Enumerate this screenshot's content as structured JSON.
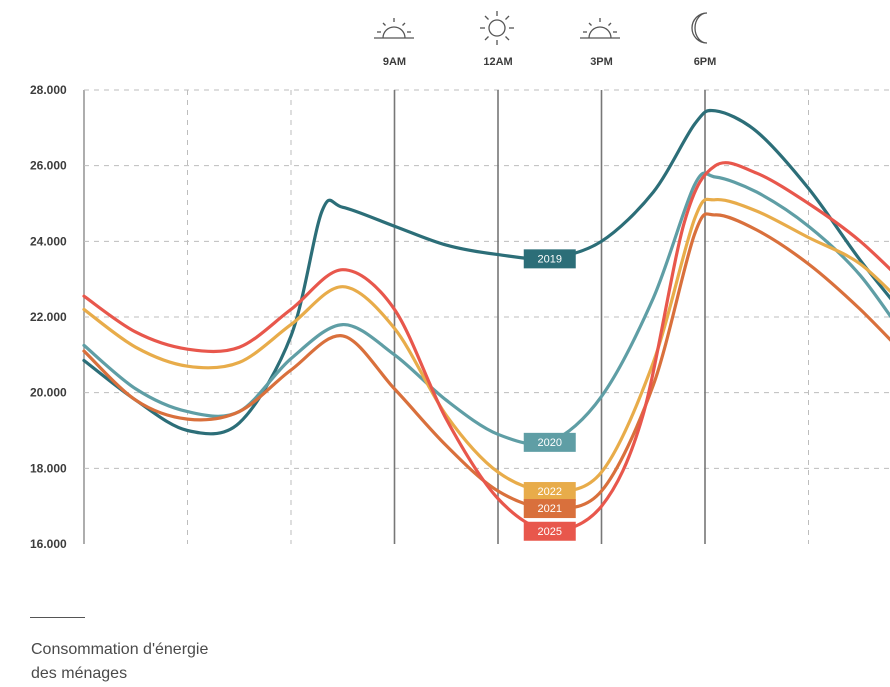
{
  "chart_data": {
    "type": "line",
    "y_ticks": [
      "28.000",
      "26.000",
      "24.000",
      "22.000",
      "20.000",
      "18.000",
      "16.000"
    ],
    "ylim": [
      16000,
      28000
    ],
    "xlim": [
      0,
      8
    ],
    "time_markers": [
      {
        "label": "9AM",
        "x": 3,
        "icon": "sunrise-icon"
      },
      {
        "label": "12AM",
        "x": 4,
        "icon": "sun-icon"
      },
      {
        "label": "3PM",
        "x": 5,
        "icon": "sunset-icon"
      },
      {
        "label": "6PM",
        "x": 6,
        "icon": "moon-icon"
      }
    ],
    "grid": true,
    "series": [
      {
        "name": "2019",
        "color": "#2c6e78",
        "label_x": 4.5,
        "x": [
          0,
          0.5,
          1,
          1.5,
          2,
          2.3,
          2.5,
          3,
          3.5,
          4,
          4.5,
          5,
          5.5,
          5.9,
          6.1,
          6.5,
          7,
          7.5,
          8
        ],
        "y": [
          20850,
          19800,
          19000,
          19200,
          21500,
          24800,
          24900,
          24400,
          23900,
          23650,
          23550,
          24000,
          25300,
          27100,
          27450,
          26900,
          25400,
          23500,
          21800
        ]
      },
      {
        "name": "2020",
        "color": "#5f9ea5",
        "label_x": 4.5,
        "x": [
          0,
          0.5,
          1,
          1.5,
          2,
          2.5,
          3,
          3.5,
          4,
          4.5,
          5,
          5.5,
          5.9,
          6.1,
          6.5,
          7,
          7.5,
          8
        ],
        "y": [
          21250,
          20100,
          19500,
          19500,
          20900,
          21800,
          21000,
          19800,
          18900,
          18700,
          19900,
          22500,
          25500,
          25700,
          25300,
          24400,
          23100,
          21200
        ]
      },
      {
        "name": "2022",
        "color": "#e8ac4a",
        "label_x": 4.5,
        "x": [
          0,
          0.5,
          1,
          1.5,
          2,
          2.5,
          3,
          3.5,
          4,
          4.5,
          5,
          5.5,
          5.9,
          6.1,
          6.5,
          7,
          7.5,
          8
        ],
        "y": [
          22200,
          21200,
          20700,
          20800,
          21800,
          22800,
          21700,
          19400,
          17900,
          17400,
          17900,
          20800,
          24600,
          25100,
          24800,
          24100,
          23400,
          22100
        ]
      },
      {
        "name": "2021",
        "color": "#d9703c",
        "label_x": 4.5,
        "x": [
          0,
          0.5,
          1,
          1.5,
          2,
          2.5,
          3,
          3.5,
          4,
          4.5,
          5,
          5.5,
          5.9,
          6.1,
          6.5,
          7,
          7.5,
          8
        ],
        "y": [
          21100,
          19800,
          19300,
          19500,
          20600,
          21500,
          20100,
          18600,
          17400,
          16950,
          17400,
          20200,
          24200,
          24700,
          24300,
          23400,
          22200,
          20800
        ]
      },
      {
        "name": "2025",
        "color": "#e8574c",
        "label_x": 4.5,
        "x": [
          0,
          0.5,
          1,
          1.5,
          2,
          2.5,
          3,
          3.5,
          4,
          4.5,
          5,
          5.4,
          5.8,
          6.1,
          6.5,
          7,
          7.5,
          8
        ],
        "y": [
          22550,
          21600,
          21150,
          21200,
          22200,
          23250,
          22200,
          19300,
          17200,
          16350,
          17000,
          19400,
          24500,
          26000,
          25800,
          25000,
          24000,
          22700
        ]
      }
    ],
    "legend_order": [
      "2019",
      "2020",
      "2022",
      "2021",
      "2025"
    ]
  },
  "caption": {
    "line1": "Consommation d'énergie",
    "line2": "des ménages"
  }
}
